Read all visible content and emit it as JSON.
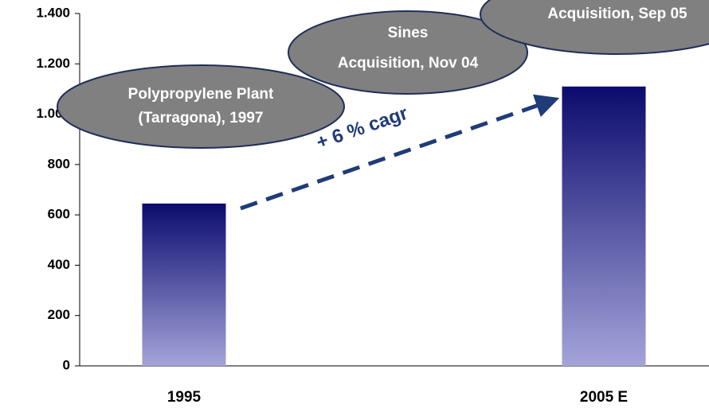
{
  "chart_data": {
    "type": "bar",
    "categories": [
      "1995",
      "2005 E"
    ],
    "values": [
      645,
      1110
    ],
    "gradient": [
      "#0b0b6e",
      "#a4a4da"
    ],
    "ylim": [
      0,
      1400
    ],
    "yticks": [
      0,
      200,
      400,
      600,
      800,
      {
        "value": 1000,
        "label": "1.000"
      },
      {
        "value": 1200,
        "label": "1.200"
      },
      {
        "value": 1400,
        "label": "1.400"
      }
    ],
    "annotations": [
      {
        "lines": [
          "Polypropylene Plant",
          "(Tarragona), 1997"
        ]
      },
      {
        "lines": [
          "Sines",
          "Acquisition, Nov 04"
        ]
      },
      {
        "lines": [
          "Acquisition, Sep 05"
        ]
      }
    ],
    "trend_label": "+ 6 % cagr"
  }
}
